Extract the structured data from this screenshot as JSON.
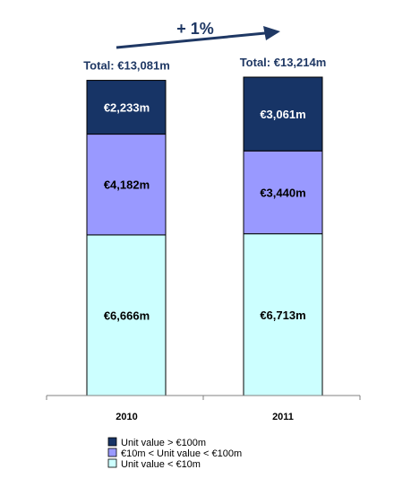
{
  "chart_data": {
    "type": "bar",
    "stacked": true,
    "categories": [
      "2010",
      "2011"
    ],
    "series": [
      {
        "name": "Unit value < €10m",
        "values": [
          6666,
          6713
        ],
        "value_labels": [
          "€6,666m",
          "€6,713m"
        ],
        "color": "#ccffff"
      },
      {
        "name": "€10m < Unit value < €100m",
        "values": [
          4182,
          3440
        ],
        "value_labels": [
          "€4,182m",
          "€3,440m"
        ],
        "color": "#9999ff"
      },
      {
        "name": "Unit value > €100m",
        "values": [
          2233,
          3061
        ],
        "value_labels": [
          "€2,233m",
          "€3,061m"
        ],
        "color": "#173466"
      }
    ],
    "totals": [
      13081,
      13214
    ],
    "total_labels": [
      "Total: €13,081m",
      "Total: €13,214m"
    ],
    "annotation": "+ 1%",
    "legend_position": "bottom-left",
    "legend_order": [
      2,
      1,
      0
    ],
    "grid": false,
    "ylim": [
      0,
      13214
    ],
    "colors": {
      "title_text": "#1f3864",
      "arrow": "#1f3864",
      "axis": "#808080",
      "label_dark": "#000000",
      "label_light": "#ffffff"
    }
  }
}
